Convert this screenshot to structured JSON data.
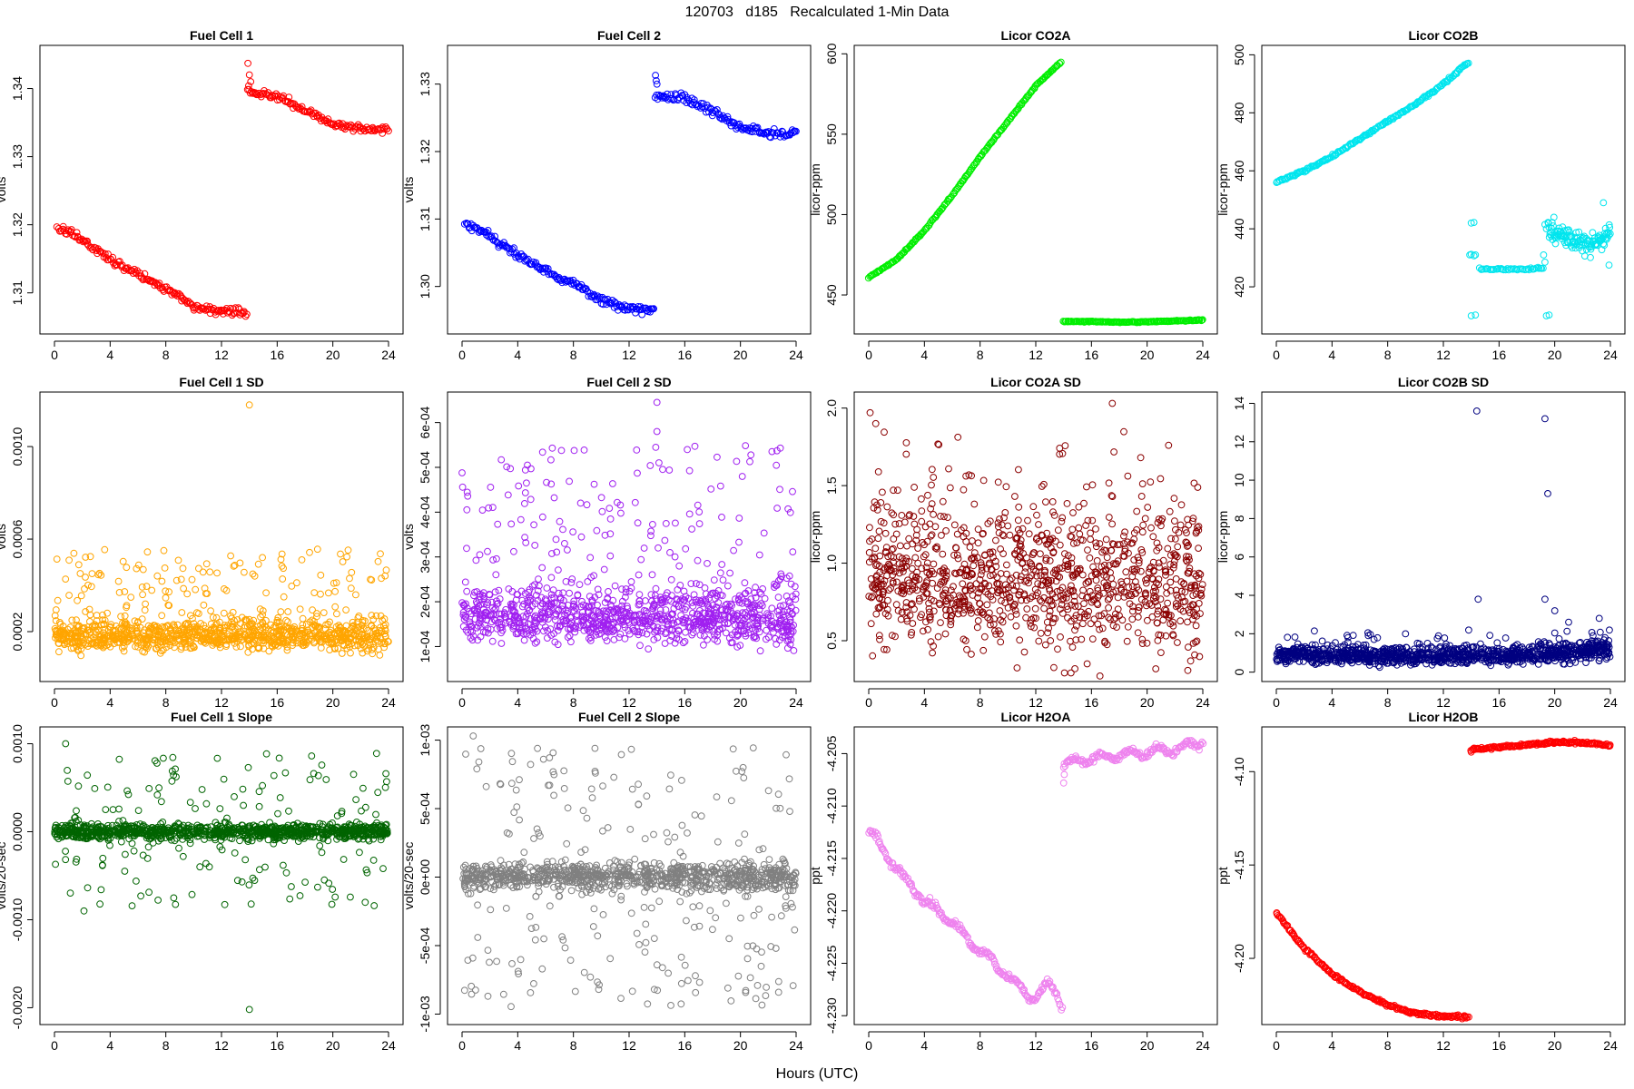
{
  "figure": {
    "title": "120703   d185   Recalculated 1-Min Data",
    "xlabel": "Hours (UTC)"
  },
  "chart_data": [
    {
      "id": "fc1",
      "type": "scatter",
      "title": "Fuel Cell 1",
      "xlabel": "",
      "ylabel": "volts",
      "color": "#ff0000",
      "xlim": [
        0,
        24
      ],
      "ylim": [
        1.3045,
        1.3458
      ],
      "x_ticks": [
        0,
        4,
        8,
        12,
        16,
        20,
        24
      ],
      "x_tick_labels": [
        "0",
        "4",
        "8",
        "12",
        "16",
        "20",
        "24"
      ],
      "y_ticks": [
        1.31,
        1.32,
        1.33,
        1.34
      ],
      "y_tick_labels": [
        "1.31",
        "1.32",
        "1.33",
        "1.34"
      ],
      "segments": [
        {
          "x": [
            0.2,
            1,
            2,
            3,
            4,
            5,
            6,
            7,
            8,
            9,
            10,
            11,
            12,
            12.8,
            13.8
          ],
          "y": [
            1.3195,
            1.319,
            1.3178,
            1.3163,
            1.315,
            1.3138,
            1.3127,
            1.3117,
            1.3106,
            1.3094,
            1.308,
            1.3075,
            1.3073,
            1.3073,
            1.307
          ],
          "n": 180,
          "noise": 0.0004
        },
        {
          "x": [
            13.9,
            14.5,
            16,
            18,
            20,
            22,
            24
          ],
          "y": [
            1.3394,
            1.3393,
            1.339,
            1.3368,
            1.3347,
            1.3342,
            1.3341
          ],
          "n": 130,
          "noise": 0.0004
        }
      ],
      "outliers": [
        {
          "x": 13.9,
          "y": 1.3437
        },
        {
          "x": 14.0,
          "y": 1.342
        },
        {
          "x": 14.1,
          "y": 1.341
        },
        {
          "x": 13.95,
          "y": 1.3404
        }
      ]
    },
    {
      "id": "fc2",
      "type": "scatter",
      "title": "Fuel Cell 2",
      "xlabel": "",
      "ylabel": "volts",
      "color": "#0000ff",
      "xlim": [
        0,
        24
      ],
      "ylim": [
        1.2935,
        1.3352
      ],
      "x_ticks": [
        0,
        4,
        8,
        12,
        16,
        20,
        24
      ],
      "x_tick_labels": [
        "0",
        "4",
        "8",
        "12",
        "16",
        "20",
        "24"
      ],
      "y_ticks": [
        1.3,
        1.31,
        1.32,
        1.33
      ],
      "y_tick_labels": [
        "1.30",
        "1.31",
        "1.32",
        "1.33"
      ],
      "segments": [
        {
          "x": [
            0.2,
            1,
            2,
            3,
            4,
            5,
            6,
            7,
            8,
            9,
            10,
            11,
            12,
            12.8,
            13.8
          ],
          "y": [
            1.3092,
            1.3088,
            1.3075,
            1.306,
            1.3047,
            1.3035,
            1.3025,
            1.3013,
            1.3005,
            1.2993,
            1.298,
            1.2972,
            1.2968,
            1.2967,
            1.2965
          ],
          "n": 180,
          "noise": 0.0004
        },
        {
          "x": [
            13.9,
            14.5,
            16,
            18,
            20,
            22,
            24
          ],
          "y": [
            1.3283,
            1.3283,
            1.328,
            1.3258,
            1.3235,
            1.3227,
            1.3227
          ],
          "n": 130,
          "noise": 0.0004
        }
      ],
      "outliers": [
        {
          "x": 13.9,
          "y": 1.3313
        },
        {
          "x": 13.95,
          "y": 1.3305
        },
        {
          "x": 14.0,
          "y": 1.33
        }
      ]
    },
    {
      "id": "co2a",
      "type": "scatter",
      "title": "Licor CO2A",
      "xlabel": "",
      "ylabel": "licor-ppm",
      "color": "#00ee00",
      "xlim": [
        0,
        24
      ],
      "ylim": [
        428,
        603
      ],
      "x_ticks": [
        0,
        4,
        8,
        12,
        16,
        20,
        24
      ],
      "x_tick_labels": [
        "0",
        "4",
        "8",
        "12",
        "16",
        "20",
        "24"
      ],
      "y_ticks": [
        450,
        500,
        550,
        600
      ],
      "y_tick_labels": [
        "450",
        "500",
        "550",
        "600"
      ],
      "segments": [
        {
          "x": [
            0,
            2,
            4,
            6,
            8,
            10,
            12,
            13.8
          ],
          "y": [
            461,
            472,
            490,
            512,
            536,
            558,
            580,
            595
          ],
          "n": 200,
          "noise": 0.3
        },
        {
          "x": [
            14,
            16,
            18,
            20,
            22,
            24
          ],
          "y": [
            433.5,
            433.5,
            433.0,
            433.3,
            433.8,
            434.5
          ],
          "n": 150,
          "noise": 0.2
        }
      ],
      "outliers": []
    },
    {
      "id": "co2b",
      "type": "scatter",
      "title": "Licor CO2B",
      "xlabel": "",
      "ylabel": "licor-ppm",
      "color": "#00e5ee",
      "xlim": [
        0,
        24
      ],
      "ylim": [
        405,
        502
      ],
      "x_ticks": [
        0,
        4,
        8,
        12,
        16,
        20,
        24
      ],
      "x_tick_labels": [
        "0",
        "4",
        "8",
        "12",
        "16",
        "20",
        "24"
      ],
      "y_ticks": [
        420,
        440,
        460,
        480,
        500
      ],
      "y_tick_labels": [
        "420",
        "440",
        "460",
        "480",
        "500"
      ],
      "segments": [
        {
          "x": [
            0,
            2,
            4,
            6,
            8,
            10,
            12,
            13.8
          ],
          "y": [
            456,
            460,
            465,
            471,
            477,
            483,
            490,
            497.5
          ],
          "n": 200,
          "noise": 0.3
        },
        {
          "x": [
            14.6,
            16,
            18,
            19.2
          ],
          "y": [
            426.2,
            426.0,
            426.1,
            426.4
          ],
          "n": 45,
          "noise": 0.25
        },
        {
          "x": [
            19.5,
            20.5,
            21.5,
            22.5,
            23.5,
            24
          ],
          "y": [
            440,
            438,
            436,
            434,
            437,
            438
          ],
          "n": 120,
          "noise": 2.5
        }
      ],
      "outliers": [
        {
          "x": 13.9,
          "y": 431
        },
        {
          "x": 14.0,
          "y": 431.2
        },
        {
          "x": 14.2,
          "y": 430.7
        },
        {
          "x": 14.3,
          "y": 431
        },
        {
          "x": 14.0,
          "y": 442
        },
        {
          "x": 14.2,
          "y": 442.2
        },
        {
          "x": 14.0,
          "y": 410
        },
        {
          "x": 14.3,
          "y": 410.3
        },
        {
          "x": 19.3,
          "y": 441.5
        },
        {
          "x": 19.4,
          "y": 440
        },
        {
          "x": 19.2,
          "y": 431
        },
        {
          "x": 19.3,
          "y": 428.5
        },
        {
          "x": 19.4,
          "y": 410
        },
        {
          "x": 19.6,
          "y": 410.3
        },
        {
          "x": 23.9,
          "y": 427.5
        },
        {
          "x": 23.5,
          "y": 449
        }
      ]
    },
    {
      "id": "fc1sd",
      "type": "scatter",
      "title": "Fuel Cell 1 SD",
      "xlabel": "",
      "ylabel": "volts",
      "color": "#ffa500",
      "xlim": [
        0,
        24
      ],
      "ylim": [
        0,
        0.00122
      ],
      "x_ticks": [
        0,
        4,
        8,
        12,
        16,
        20,
        24
      ],
      "x_tick_labels": [
        "0",
        "4",
        "8",
        "12",
        "16",
        "20",
        "24"
      ],
      "y_ticks": [
        0.0002,
        0.0006,
        0.001
      ],
      "y_tick_labels": [
        "0.0002",
        "0.0006",
        "0.0010"
      ],
      "segments": [
        {
          "x": [
            0,
            24
          ],
          "y": [
            0.00018,
            0.00018
          ],
          "n": 1100,
          "noise": 4e-05,
          "spread": "cloud",
          "tail_frac": 0.14,
          "tail_max": 0.00056
        }
      ],
      "outliers": [
        {
          "x": 14.0,
          "y": 0.00118
        }
      ]
    },
    {
      "id": "fc2sd",
      "type": "scatter",
      "title": "Fuel Cell 2 SD",
      "xlabel": "",
      "ylabel": "volts",
      "color": "#a020f0",
      "xlim": [
        0,
        24
      ],
      "ylim": [
        3e-05,
        0.00066
      ],
      "x_ticks": [
        0,
        4,
        8,
        12,
        16,
        20,
        24
      ],
      "x_tick_labels": [
        "0",
        "4",
        "8",
        "12",
        "16",
        "20",
        "24"
      ],
      "y_ticks": [
        0.0001,
        0.0002,
        0.0003,
        0.0004,
        0.0005,
        0.0006
      ],
      "y_tick_labels": [
        "1e-04",
        "2e-04",
        "3e-04",
        "4e-04",
        "5e-04",
        "6e-04"
      ],
      "segments": [
        {
          "x": [
            0,
            24
          ],
          "y": [
            0.00017,
            0.00016
          ],
          "n": 1100,
          "noise": 4e-05,
          "spread": "cloud",
          "tail_frac": 0.16,
          "tail_max": 0.00055
        }
      ],
      "outliers": [
        {
          "x": 14.0,
          "y": 0.000645
        },
        {
          "x": 14.0,
          "y": 0.00058
        }
      ]
    },
    {
      "id": "co2asd",
      "type": "scatter",
      "title": "Licor CO2A SD",
      "xlabel": "",
      "ylabel": "licor-ppm",
      "color": "#8b0000",
      "xlim": [
        0,
        24
      ],
      "ylim": [
        0.26,
        2.08
      ],
      "x_ticks": [
        0,
        4,
        8,
        12,
        16,
        20,
        24
      ],
      "x_tick_labels": [
        "0",
        "4",
        "8",
        "12",
        "16",
        "20",
        "24"
      ],
      "y_ticks": [
        0.5,
        1.0,
        1.5,
        2.0
      ],
      "y_tick_labels": [
        "0.5",
        "1.0",
        "1.5",
        "2.0"
      ],
      "segments": [
        {
          "x": [
            0,
            24
          ],
          "y": [
            0.9,
            0.82
          ],
          "n": 1100,
          "noise": 0.28,
          "spread": "cloud",
          "tail_frac": 0.05,
          "tail_max": 1.85
        }
      ],
      "outliers": [
        {
          "x": 0.1,
          "y": 1.97
        },
        {
          "x": 17.5,
          "y": 2.03
        },
        {
          "x": 0.5,
          "y": 1.9
        }
      ]
    },
    {
      "id": "co2bsd",
      "type": "scatter",
      "title": "Licor CO2B SD",
      "xlabel": "",
      "ylabel": "licor-ppm",
      "color": "#000080",
      "xlim": [
        0,
        24
      ],
      "ylim": [
        -0.3,
        14.4
      ],
      "x_ticks": [
        0,
        4,
        8,
        12,
        16,
        20,
        24
      ],
      "x_tick_labels": [
        "0",
        "4",
        "8",
        "12",
        "16",
        "20",
        "24"
      ],
      "y_ticks": [
        0,
        2,
        4,
        6,
        8,
        10,
        12,
        14
      ],
      "y_tick_labels": [
        "0",
        "2",
        "4",
        "6",
        "8",
        "10",
        "12",
        "14"
      ],
      "segments": [
        {
          "x": [
            0,
            10,
            19,
            24
          ],
          "y": [
            0.9,
            0.8,
            0.9,
            1.2
          ],
          "n": 1100,
          "noise": 0.3,
          "spread": "cloud",
          "tail_frac": 0.06,
          "tail_max": 2.3
        }
      ],
      "outliers": [
        {
          "x": 14.4,
          "y": 13.6
        },
        {
          "x": 19.3,
          "y": 13.2
        },
        {
          "x": 19.5,
          "y": 9.3
        },
        {
          "x": 14.5,
          "y": 3.8
        },
        {
          "x": 19.3,
          "y": 3.8
        },
        {
          "x": 20.0,
          "y": 3.2
        },
        {
          "x": 21.0,
          "y": 2.6
        },
        {
          "x": 23.2,
          "y": 2.8
        }
      ]
    },
    {
      "id": "fc1slope",
      "type": "scatter",
      "title": "Fuel Cell 1 Slope",
      "xlabel": "",
      "ylabel": "volts/20-sec",
      "color": "#006400",
      "xlim": [
        0,
        24
      ],
      "ylim": [
        -0.00215,
        0.00115
      ],
      "x_ticks": [
        0,
        4,
        8,
        12,
        16,
        20,
        24
      ],
      "x_tick_labels": [
        "0",
        "4",
        "8",
        "12",
        "16",
        "20",
        "24"
      ],
      "y_ticks": [
        -0.002,
        -0.001,
        0.0,
        0.001
      ],
      "y_tick_labels": [
        "-0.0020",
        "-0.0010",
        "0.0000",
        "0.0010"
      ],
      "segments": [
        {
          "x": [
            0,
            24
          ],
          "y": [
            0,
            0
          ],
          "n": 1100,
          "noise": 6e-05,
          "spread": "sym",
          "tail_frac": 0.16,
          "tail_max": 0.0009
        }
      ],
      "outliers": [
        {
          "x": 14.0,
          "y": -0.00202
        },
        {
          "x": 0.8,
          "y": 0.001
        }
      ]
    },
    {
      "id": "fc2slope",
      "type": "scatter",
      "title": "Fuel Cell 2 Slope",
      "xlabel": "",
      "ylabel": "volts/20-sec",
      "color": "#808080",
      "xlim": [
        0,
        24
      ],
      "ylim": [
        -0.00105,
        0.00107
      ],
      "x_ticks": [
        0,
        4,
        8,
        12,
        16,
        20,
        24
      ],
      "x_tick_labels": [
        "0",
        "4",
        "8",
        "12",
        "16",
        "20",
        "24"
      ],
      "y_ticks": [
        -0.001,
        -0.0005,
        0.0,
        0.0005,
        0.001
      ],
      "y_tick_labels": [
        "-1e-03",
        "-5e-04",
        "0e+00",
        "5e-04",
        "1e-03"
      ],
      "segments": [
        {
          "x": [
            0,
            24
          ],
          "y": [
            0,
            0
          ],
          "n": 1100,
          "noise": 7e-05,
          "spread": "sym",
          "tail_frac": 0.22,
          "tail_max": 0.00095
        }
      ],
      "outliers": [
        {
          "x": 0.8,
          "y": 0.00103
        }
      ]
    },
    {
      "id": "h2oa",
      "type": "scatter",
      "title": "Licor H2OA",
      "xlabel": "",
      "ylabel": "ppt",
      "color": "#ee82ee",
      "xlim": [
        0,
        24
      ],
      "ylim": [
        -4.2305,
        -4.2028
      ],
      "x_ticks": [
        0,
        4,
        8,
        12,
        16,
        20,
        24
      ],
      "x_tick_labels": [
        "0",
        "4",
        "8",
        "12",
        "16",
        "20",
        "24"
      ],
      "y_ticks": [
        -4.23,
        -4.225,
        -4.22,
        -4.215,
        -4.21,
        -4.205
      ],
      "y_tick_labels": [
        "-4.230",
        "-4.225",
        "-4.220",
        "-4.215",
        "-4.210",
        "-4.205"
      ],
      "segments": [
        {
          "x": [
            0,
            1,
            2,
            3,
            4,
            5,
            6,
            7,
            8,
            9,
            10,
            11,
            12,
            12.5,
            13,
            13.5,
            13.9
          ],
          "y": [
            -4.2122,
            -4.214,
            -4.216,
            -4.2175,
            -4.219,
            -4.22,
            -4.221,
            -4.2225,
            -4.2238,
            -4.225,
            -4.2263,
            -4.2275,
            -4.2285,
            -4.2275,
            -4.227,
            -4.2278,
            -4.229
          ],
          "n": 220,
          "noise": 0.00025,
          "wave": 0.00035
        },
        {
          "x": [
            14,
            16,
            18,
            20,
            22,
            24
          ],
          "y": [
            -4.206,
            -4.2055,
            -4.2052,
            -4.2048,
            -4.2046,
            -4.2038
          ],
          "n": 160,
          "noise": 0.0002,
          "wave": 0.0004
        }
      ],
      "outliers": [
        {
          "x": 14.0,
          "y": -4.2078
        },
        {
          "x": 14.05,
          "y": -4.207
        }
      ]
    },
    {
      "id": "h2ob",
      "type": "scatter",
      "title": "Licor H2OB",
      "xlabel": "",
      "ylabel": "ppt",
      "color": "#ff0000",
      "xlim": [
        0,
        24
      ],
      "ylim": [
        -4.2335,
        -4.078
      ],
      "x_ticks": [
        0,
        4,
        8,
        12,
        16,
        20,
        24
      ],
      "x_tick_labels": [
        "0",
        "4",
        "8",
        "12",
        "16",
        "20",
        "24"
      ],
      "y_ticks": [
        -4.2,
        -4.15,
        -4.1
      ],
      "y_tick_labels": [
        "-4.20",
        "-4.15",
        "-4.10"
      ],
      "segments": [
        {
          "x": [
            0,
            2,
            4,
            6,
            8,
            10,
            12,
            13.8
          ],
          "y": [
            -4.1755,
            -4.1945,
            -4.2085,
            -4.218,
            -4.225,
            -4.2295,
            -4.231,
            -4.2315
          ],
          "n": 220,
          "noise": 0.0005
        },
        {
          "x": [
            14,
            16,
            18,
            20,
            22,
            24
          ],
          "y": [
            -4.088,
            -4.087,
            -4.0855,
            -4.084,
            -4.0845,
            -4.086
          ],
          "n": 160,
          "noise": 0.0005
        }
      ],
      "outliers": [
        {
          "x": 14.0,
          "y": -4.0895
        }
      ]
    }
  ]
}
